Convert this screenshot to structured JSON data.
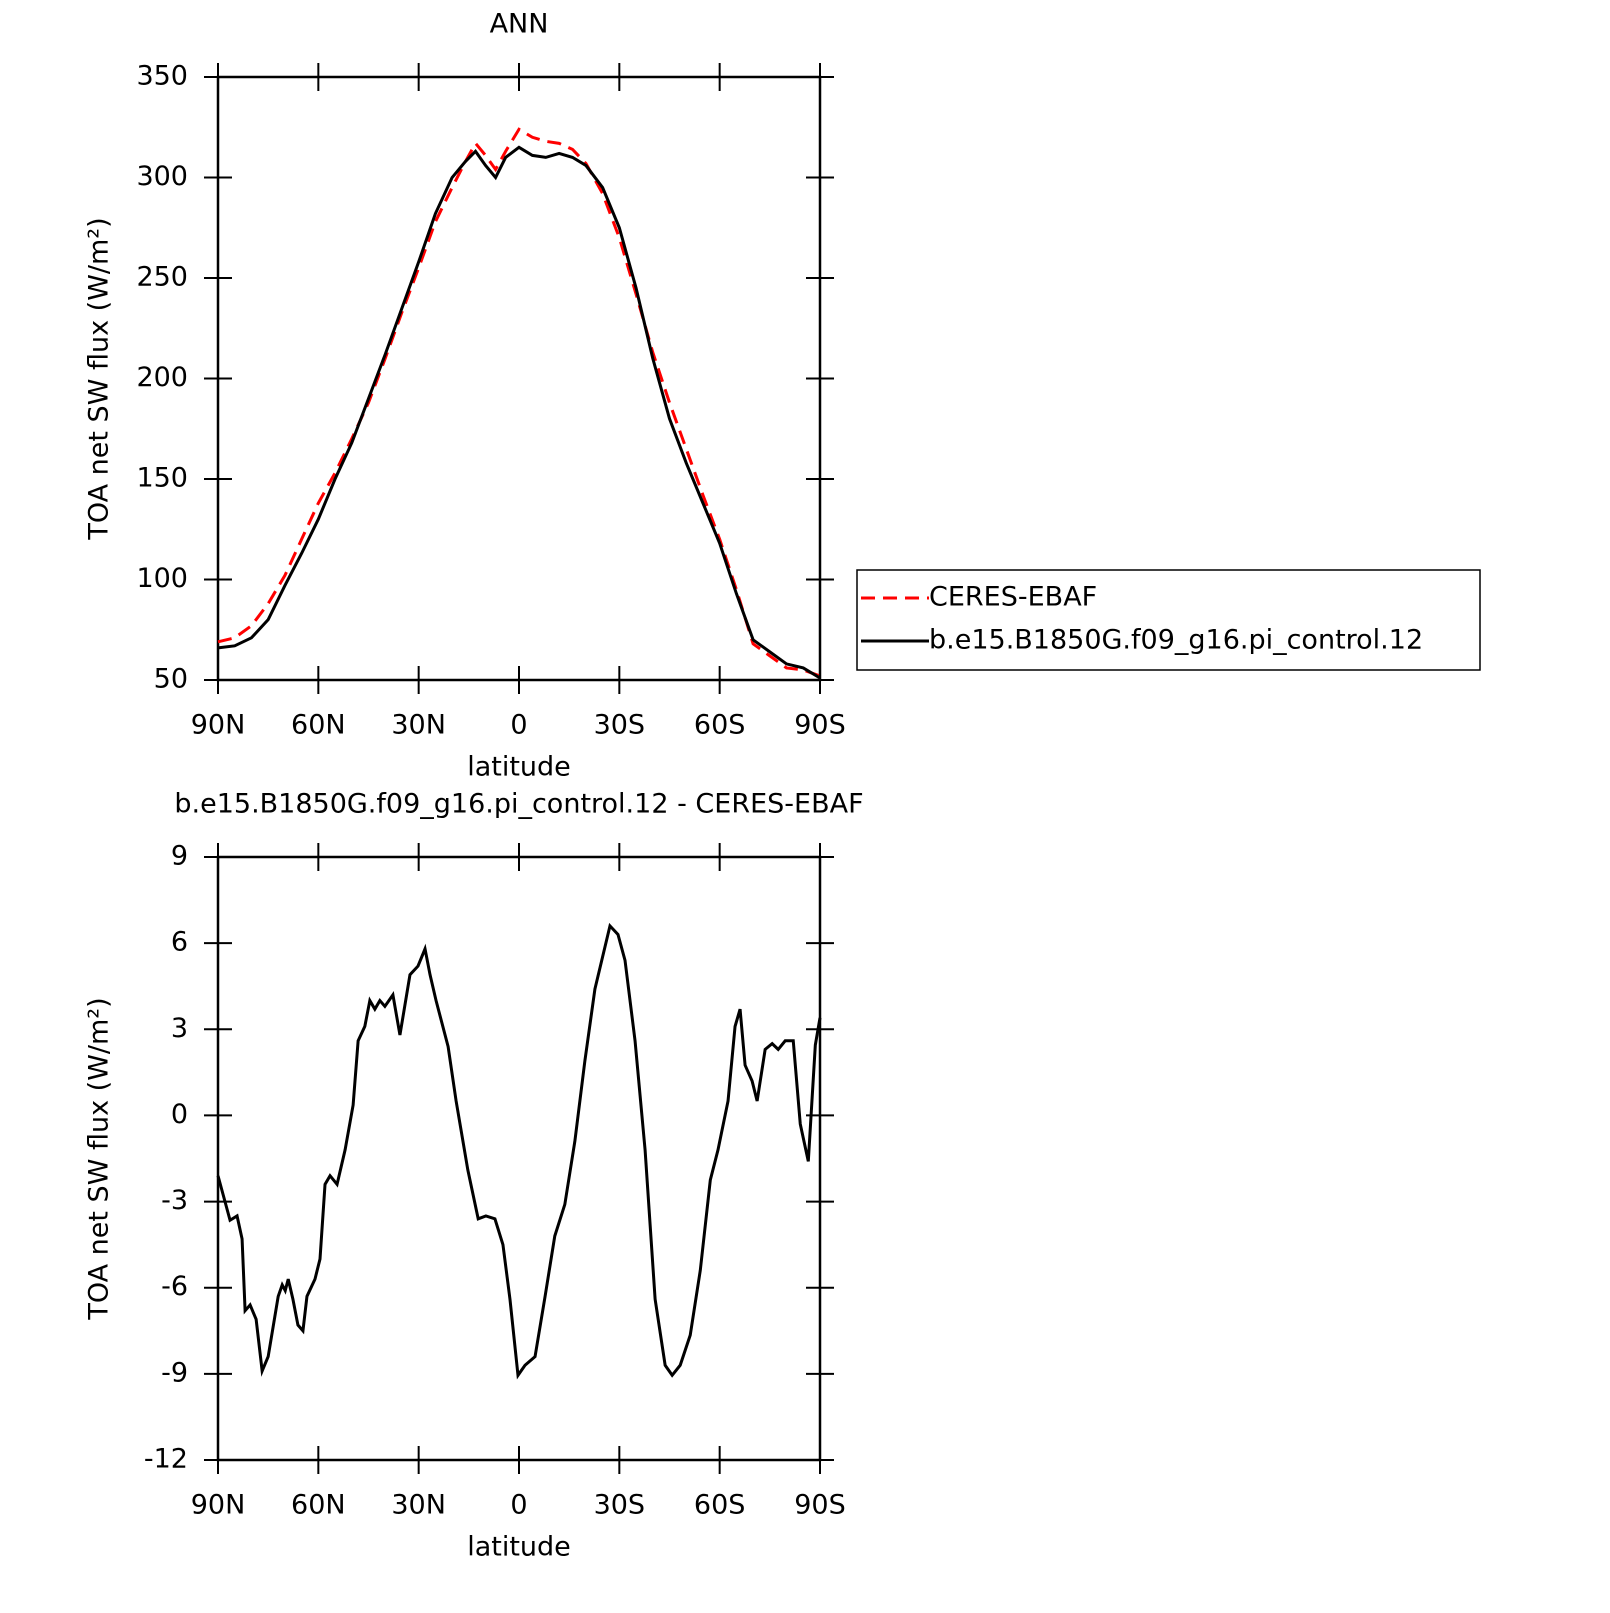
{
  "chart_data": [
    {
      "type": "line",
      "title": "ANN",
      "xlabel": "latitude",
      "ylabel": "TOA net SW flux (W/m²)",
      "x": [
        90,
        85,
        80,
        75,
        70,
        65,
        60,
        55,
        50,
        45,
        40,
        35,
        30,
        25,
        20,
        16,
        13,
        10,
        7,
        4,
        0,
        -4,
        -8,
        -12,
        -16,
        -20,
        -25,
        -30,
        -35,
        -40,
        -45,
        -50,
        -55,
        -60,
        -65,
        -70,
        -75,
        -80,
        -85,
        -90
      ],
      "series": [
        {
          "name": "CERES-EBAF",
          "color": "#ff0000",
          "linestyle": "dashed",
          "values": [
            69,
            71,
            77,
            88,
            102,
            120,
            138,
            153,
            170,
            188,
            210,
            233,
            255,
            278,
            295,
            308,
            317,
            311,
            304,
            313,
            324,
            320,
            318,
            317,
            314,
            307,
            292,
            270,
            242,
            213,
            188,
            165,
            142,
            120,
            95,
            68,
            62,
            56,
            55,
            52
          ]
        },
        {
          "name": "b.e15.B1850G.f09_g16.pi_control.12",
          "color": "#000000",
          "linestyle": "solid",
          "values": [
            66,
            67,
            71,
            80,
            97,
            113,
            130,
            150,
            168,
            190,
            212,
            235,
            258,
            282,
            300,
            308,
            313,
            306,
            300,
            310,
            315,
            311,
            310,
            312,
            310,
            306,
            295,
            275,
            245,
            210,
            180,
            158,
            138,
            118,
            93,
            70,
            64,
            58,
            56,
            51
          ]
        }
      ],
      "xlim": [
        90,
        -90
      ],
      "xticks": [
        {
          "value": 90,
          "label": "90N"
        },
        {
          "value": 60,
          "label": "60N"
        },
        {
          "value": 30,
          "label": "30N"
        },
        0,
        {
          "value": -30,
          "label": "30S"
        },
        {
          "value": -60,
          "label": "60S"
        },
        {
          "value": -90,
          "label": "90S"
        }
      ],
      "ylim": [
        50,
        350
      ],
      "yticks": [
        50,
        100,
        150,
        200,
        250,
        300,
        350
      ],
      "legend": "right"
    },
    {
      "type": "line",
      "title": "b.e15.B1850G.f09_g16.pi_control.12 - CERES-EBAF",
      "xlabel": "latitude",
      "ylabel": "TOA net SW flux (W/m²)",
      "x": [
        90,
        86.4,
        84.3,
        82.8,
        81.9,
        80.4,
        78.6,
        76.8,
        75,
        72,
        70.8,
        69.9,
        69,
        67.6,
        66.1,
        64.6,
        63.4,
        61,
        59.5,
        58,
        56.5,
        54.4,
        52,
        49.6,
        48.1,
        46.1,
        44.6,
        43.1,
        41.6,
        40.1,
        37.7,
        35.6,
        32.6,
        30.2,
        28.1,
        26.6,
        24.8,
        21.2,
        18.8,
        15.3,
        12.2,
        9.9,
        7.2,
        4.8,
        2.7,
        0.3,
        -1.8,
        -4.8,
        -7.8,
        -10.7,
        -13.7,
        -16.7,
        -19.7,
        -22.7,
        -27.2,
        -29.6,
        -31.7,
        -34.7,
        -37.7,
        -40.7,
        -43.7,
        -45.8,
        -48.2,
        -51.2,
        -54.2,
        -57.2,
        -59.5,
        -62.5,
        -64.6,
        -66.1,
        -67.6,
        -69.7,
        -71.2,
        -73.6,
        -75.7,
        -77.5,
        -79.6,
        -82,
        -84.1,
        -86.5,
        -88.6,
        -90
      ],
      "values": [
        -2.1,
        -3.65,
        -3.5,
        -4.3,
        -6.8,
        -6.6,
        -7.1,
        -8.9,
        -8.4,
        -6.3,
        -5.9,
        -6.1,
        -5.7,
        -6.4,
        -7.3,
        -7.5,
        -6.3,
        -5.7,
        -5,
        -2.4,
        -2.1,
        -2.4,
        -1.2,
        0.36,
        2.6,
        3.1,
        4,
        3.7,
        4,
        3.8,
        4.2,
        2.8,
        4.9,
        5.2,
        5.8,
        4.9,
        4,
        2.4,
        0.5,
        -1.9,
        -3.6,
        -3.5,
        -3.6,
        -4.5,
        -6.4,
        -9.05,
        -8.7,
        -8.4,
        -6.3,
        -4.2,
        -3.1,
        -0.9,
        1.9,
        4.4,
        6.6,
        6.3,
        5.4,
        2.6,
        -1.2,
        -6.4,
        -8.7,
        -9.05,
        -8.7,
        -7.65,
        -5.4,
        -2.25,
        -1.2,
        0.5,
        3.1,
        3.7,
        1.75,
        1.2,
        0.5,
        2.3,
        2.5,
        2.3,
        2.6,
        2.6,
        -0.3,
        -1.6,
        2.45,
        3.4
      ],
      "color": "#000000",
      "xlim": [
        90,
        -90
      ],
      "xticks": [
        {
          "value": 90,
          "label": "90N"
        },
        {
          "value": 60,
          "label": "60N"
        },
        {
          "value": 30,
          "label": "30N"
        },
        0,
        {
          "value": -30,
          "label": "30S"
        },
        {
          "value": -60,
          "label": "60S"
        },
        {
          "value": -90,
          "label": "90S"
        }
      ],
      "ylim": [
        -12,
        9
      ],
      "yticks": [
        -12,
        -9,
        -6,
        -3,
        0,
        3,
        6,
        9
      ]
    }
  ]
}
